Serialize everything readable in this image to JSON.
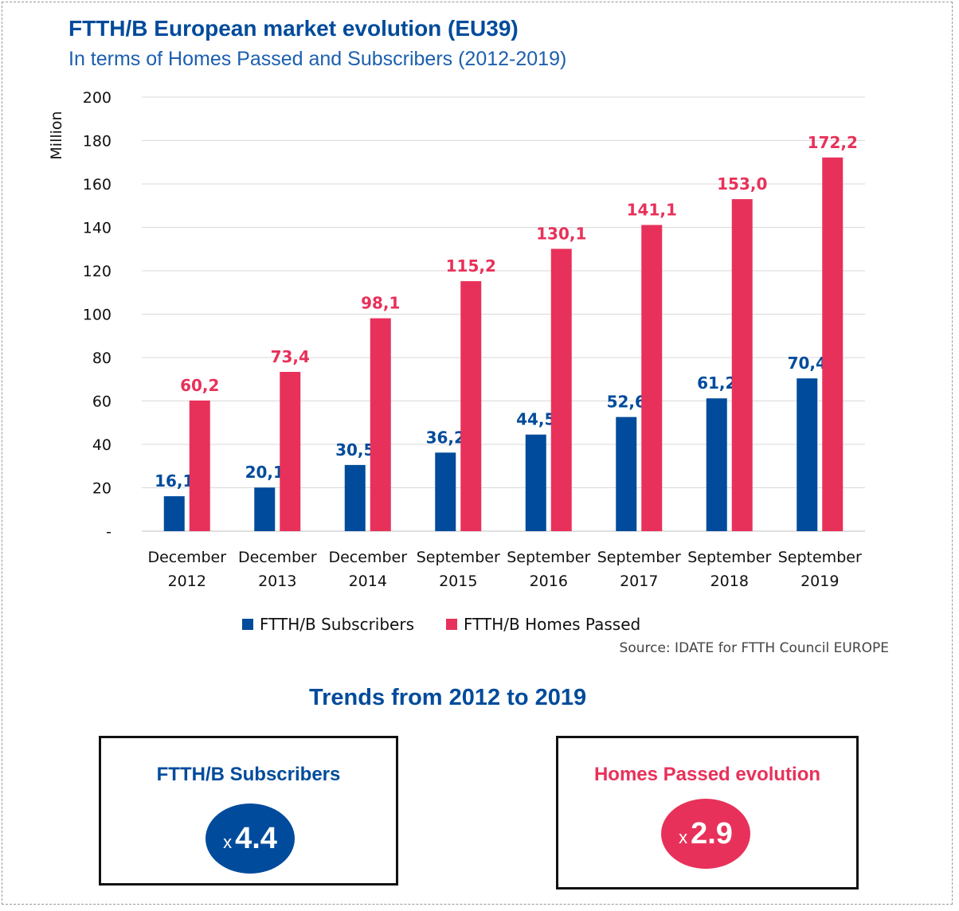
{
  "header": {
    "title": "FTTH/B European market evolution (EU39)",
    "subtitle": "In terms of Homes Passed and Subscribers (2012-2019)"
  },
  "colors": {
    "subscribers": "#004b9b",
    "homes_passed": "#e8315a",
    "title": "#004b9b"
  },
  "chart_data": {
    "type": "bar",
    "title": "FTTH/B European market evolution (EU39)",
    "subtitle": "In terms of Homes Passed and Subscribers (2012-2019)",
    "xlabel": "",
    "ylabel": "Million",
    "ylim": [
      0,
      200
    ],
    "yticks": [
      "-",
      "20",
      "40",
      "60",
      "80",
      "100",
      "120",
      "140",
      "160",
      "180",
      "200"
    ],
    "ytick_values": [
      0,
      20,
      40,
      60,
      80,
      100,
      120,
      140,
      160,
      180,
      200
    ],
    "grid": true,
    "legend_position": "bottom",
    "categories": [
      [
        "December",
        "2012"
      ],
      [
        "December",
        "2013"
      ],
      [
        "December",
        "2014"
      ],
      [
        "September",
        "2015"
      ],
      [
        "September",
        "2016"
      ],
      [
        "September",
        "2017"
      ],
      [
        "September",
        "2018"
      ],
      [
        "September",
        "2019"
      ]
    ],
    "series": [
      {
        "name": "FTTH/B Subscribers",
        "color": "#004b9b",
        "values": [
          16.1,
          20.1,
          30.5,
          36.2,
          44.5,
          52.6,
          61.2,
          70.4
        ],
        "labels": [
          "16,1",
          "20,1",
          "30,5",
          "36,2",
          "44,5",
          "52,6",
          "61,2",
          "70,4"
        ]
      },
      {
        "name": "FTTH/B Homes Passed",
        "color": "#e8315a",
        "values": [
          60.2,
          73.4,
          98.1,
          115.2,
          130.1,
          141.1,
          153.0,
          172.2
        ],
        "labels": [
          "60,2",
          "73,4",
          "98,1",
          "115,2",
          "130,1",
          "141,1",
          "153,0",
          "172,2"
        ]
      }
    ]
  },
  "legend": {
    "subscribers": "FTTH/B Subscribers",
    "homes_passed": "FTTH/B Homes Passed"
  },
  "source": "Source: IDATE for FTTH Council EUROPE",
  "trends": {
    "title": "Trends from 2012 to 2019",
    "subscribers": {
      "label": "FTTH/B Subscribers",
      "prefix": "x",
      "value": "4.4"
    },
    "homes_passed": {
      "label": "Homes Passed evolution",
      "prefix": "x",
      "value": "2.9"
    }
  }
}
